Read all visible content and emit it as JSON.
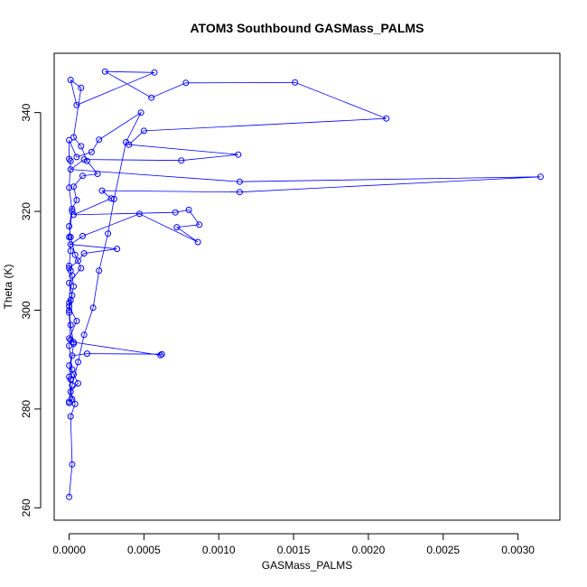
{
  "chart_data": {
    "type": "line",
    "title": "ATOM3 Southbound GASMass_PALMS",
    "xlabel": "GASMass_PALMS",
    "ylabel": "Theta (K)",
    "xlim": [
      -0.0001,
      0.00328
    ],
    "ylim": [
      257.5,
      352
    ],
    "x_ticks": [
      0.0,
      0.0005,
      0.001,
      0.0015,
      0.002,
      0.0025,
      0.003
    ],
    "x_tick_labels": [
      "0.0000",
      "0.0005",
      "0.0010",
      "0.0015",
      "0.0020",
      "0.0025",
      "0.0030"
    ],
    "y_ticks": [
      260,
      280,
      300,
      320,
      340
    ],
    "y_tick_labels": [
      "260",
      "280",
      "300",
      "320",
      "340"
    ],
    "grid": false,
    "marker": "open-circle",
    "color": "#0000ff",
    "series": [
      {
        "points": [
          [
            0.0,
            262.2
          ],
          [
            2e-05,
            268.8
          ],
          [
            1e-05,
            278.5
          ],
          [
            4e-05,
            281.0
          ],
          [
            1e-05,
            283.5
          ],
          [
            6e-05,
            285.2
          ],
          [
            3e-05,
            287.0
          ],
          [
            0.0,
            288.8
          ],
          [
            2e-05,
            290.8
          ],
          [
            0.00012,
            291.2
          ],
          [
            0.00062,
            291.1
          ],
          [
            0.00061,
            290.9
          ],
          [
            3e-05,
            293.5
          ],
          [
            0.0,
            294.3
          ],
          [
            5e-05,
            297.8
          ],
          [
            0.0,
            300.8
          ],
          [
            1e-05,
            302.0
          ],
          [
            3e-05,
            304.8
          ],
          [
            2e-05,
            307.0
          ],
          [
            0.0,
            308.5
          ],
          [
            6e-05,
            310.0
          ],
          [
            0.0001,
            311.5
          ],
          [
            0.00032,
            312.4
          ],
          [
            1e-05,
            313.3
          ],
          [
            9e-05,
            315.0
          ],
          [
            0.00047,
            319.5
          ],
          [
            0.00086,
            313.8
          ],
          [
            0.00072,
            316.8
          ],
          [
            0.00087,
            317.3
          ],
          [
            0.0008,
            320.3
          ],
          [
            0.00071,
            319.8
          ],
          [
            3e-05,
            319.3
          ],
          [
            0.00028,
            322.6
          ],
          [
            0.00022,
            324.2
          ],
          [
            0.00114,
            323.9
          ],
          [
            0.00315,
            327.0
          ],
          [
            0.00114,
            326.0
          ],
          [
            1e-05,
            328.5
          ],
          [
            0.0001,
            330.5
          ],
          [
            0.00075,
            330.3
          ],
          [
            0.00113,
            331.5
          ],
          [
            0.0004,
            333.5
          ],
          [
            0.0005,
            336.3
          ],
          [
            0.00212,
            338.8
          ],
          [
            0.00151,
            346.1
          ],
          [
            0.00078,
            346.0
          ],
          [
            0.00055,
            343.0
          ],
          [
            0.00024,
            348.3
          ],
          [
            0.00057,
            348.1
          ],
          [
            5e-05,
            341.5
          ],
          [
            1e-05,
            346.6
          ],
          [
            8e-05,
            345.0
          ],
          [
            3e-05,
            335.0
          ],
          [
            8e-05,
            333.2
          ],
          [
            0.00012,
            330.2
          ],
          [
            0.00019,
            327.6
          ],
          [
            9e-05,
            327.2
          ],
          [
            3e-05,
            325.0
          ],
          [
            5e-05,
            322.3
          ],
          [
            2e-05,
            320.5
          ],
          [
            0.0,
            317.0
          ],
          [
            1e-05,
            314.8
          ],
          [
            4e-05,
            311.2
          ],
          [
            8e-05,
            308.5
          ],
          [
            0.0,
            305.5
          ],
          [
            2e-05,
            303.0
          ],
          [
            0.0,
            300.0
          ],
          [
            1e-05,
            297.0
          ],
          [
            3e-05,
            293.2
          ],
          [
            0.0,
            286.5
          ],
          [
            2e-05,
            282.0
          ],
          [
            0.0,
            281.2
          ],
          [
            2e-05,
            284.8
          ],
          [
            6e-05,
            289.5
          ],
          [
            0.0001,
            295.0
          ],
          [
            0.00016,
            300.5
          ],
          [
            0.0002,
            308.0
          ],
          [
            0.00026,
            315.5
          ],
          [
            0.0003,
            322.5
          ],
          [
            0.00038,
            334.0
          ],
          [
            0.00048,
            340.0
          ],
          [
            0.0002,
            334.5
          ],
          [
            0.00015,
            332.0
          ],
          [
            5e-05,
            331.0
          ],
          [
            0.0,
            334.4
          ],
          [
            0.0,
            330.6
          ],
          [
            1e-05,
            330.2
          ],
          [
            0.0,
            324.8
          ],
          [
            2e-05,
            320.0
          ],
          [
            0.0,
            314.8
          ],
          [
            1e-05,
            312.0
          ],
          [
            0.0,
            309.0
          ],
          [
            1e-05,
            308.0
          ],
          [
            0.0,
            301.5
          ],
          [
            0.0,
            299.5
          ],
          [
            1e-05,
            294.0
          ],
          [
            0.0,
            292.8
          ],
          [
            2e-05,
            288.0
          ],
          [
            1e-05,
            286.0
          ],
          [
            0.0,
            281.5
          ]
        ]
      }
    ]
  }
}
